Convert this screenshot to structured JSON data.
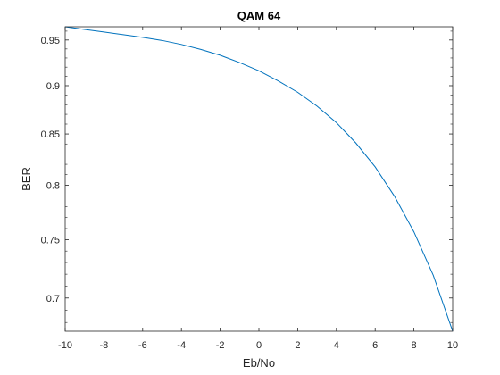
{
  "chart_data": {
    "type": "line",
    "title": "QAM 64",
    "xlabel": "Eb/No",
    "ylabel": "BER",
    "xlim": [
      -10,
      10
    ],
    "ylim": [
      0.673,
      0.965
    ],
    "y_scale": "log",
    "x_ticks": [
      -10,
      -8,
      -6,
      -4,
      -2,
      0,
      2,
      4,
      6,
      8,
      10
    ],
    "x_tick_labels": [
      "-10",
      "-8",
      "-6",
      "-4",
      "-2",
      "0",
      "2",
      "4",
      "6",
      "8",
      "10"
    ],
    "y_ticks": [
      0.7,
      0.75,
      0.8,
      0.85,
      0.9,
      0.95
    ],
    "y_tick_labels": [
      "0.7",
      "0.75",
      "0.8",
      "0.85",
      "0.9",
      "0.95"
    ],
    "grid": false,
    "box": true,
    "series": [
      {
        "color": "#0072bd",
        "x": [
          -10,
          -9,
          -8,
          -7,
          -6,
          -5,
          -4,
          -3,
          -2,
          -1,
          0,
          1,
          2,
          3,
          4,
          5,
          6,
          7,
          8,
          9,
          10
        ],
        "y": [
          0.965,
          0.962,
          0.959,
          0.956,
          0.953,
          0.9495,
          0.945,
          0.9395,
          0.933,
          0.925,
          0.916,
          0.905,
          0.893,
          0.8785,
          0.8615,
          0.841,
          0.8175,
          0.7895,
          0.757,
          0.719,
          0.673
        ]
      }
    ]
  }
}
